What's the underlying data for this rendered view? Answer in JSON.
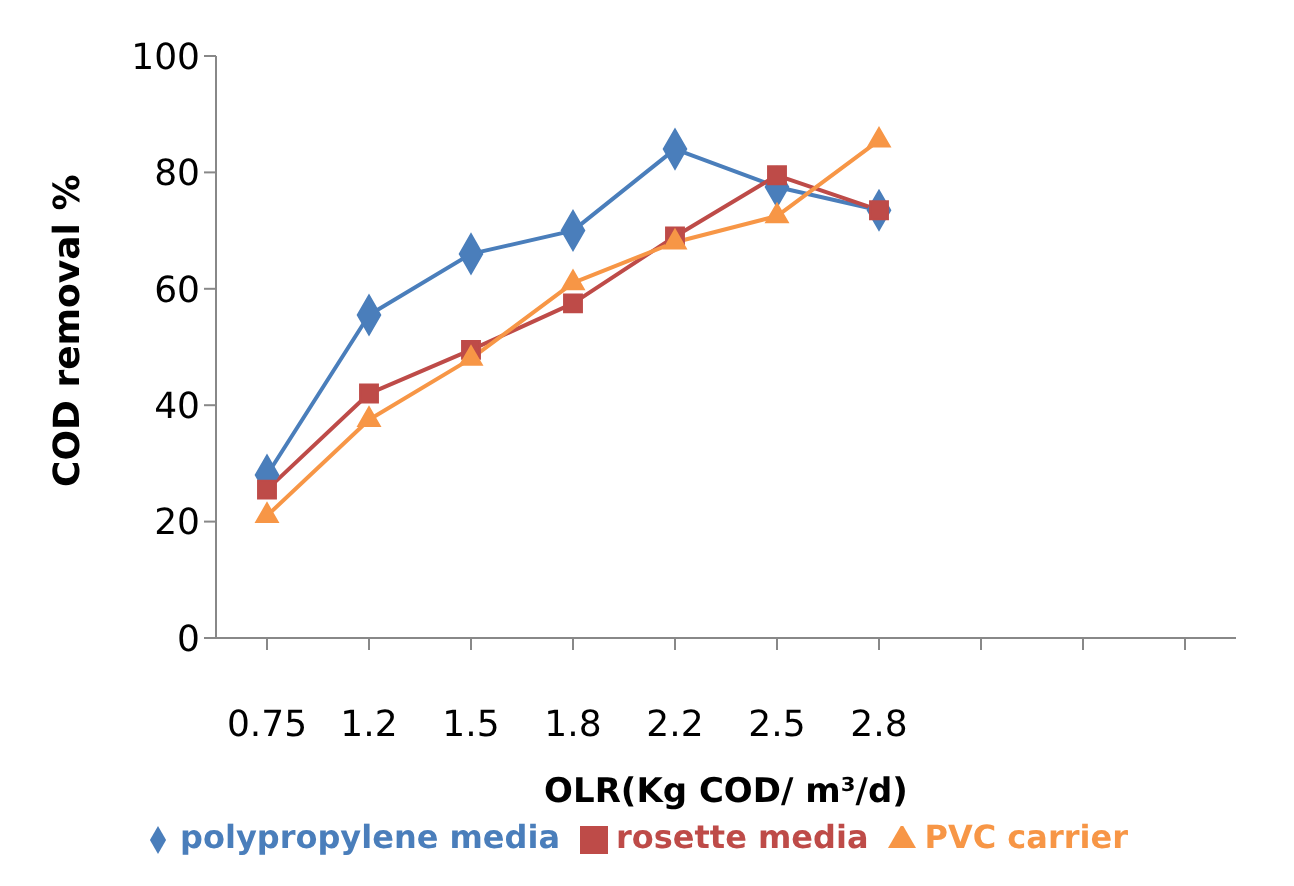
{
  "chart_data": {
    "type": "line",
    "xlabel": "OLR(Kg COD/ m³/d)",
    "ylabel": "COD removal %",
    "categories": [
      "0.75",
      "1.2",
      "1.5",
      "1.8",
      "2.2",
      "2.5",
      "2.8",
      null,
      null,
      null
    ],
    "series": [
      {
        "name": "polypropylene media",
        "color": "#4a7ebb",
        "marker": "diamond",
        "values": [
          28,
          55.5,
          66,
          70,
          84,
          77.5,
          73.5,
          null,
          null,
          null
        ]
      },
      {
        "name": "rosette media",
        "color": "#be4b48",
        "marker": "square",
        "values": [
          25.5,
          42,
          49.5,
          57.5,
          69,
          79.5,
          73.5,
          null,
          null,
          null
        ]
      },
      {
        "name": "PVC carrier",
        "color": "#f79646",
        "marker": "triangle",
        "values": [
          21,
          37.5,
          48,
          61,
          68,
          72.5,
          85.5,
          null,
          null,
          null
        ]
      }
    ],
    "ylim": [
      0,
      100
    ],
    "yticks": [
      0,
      20,
      40,
      60,
      80,
      100
    ],
    "grid": false,
    "legend": "bottom",
    "line_style": "solid"
  }
}
